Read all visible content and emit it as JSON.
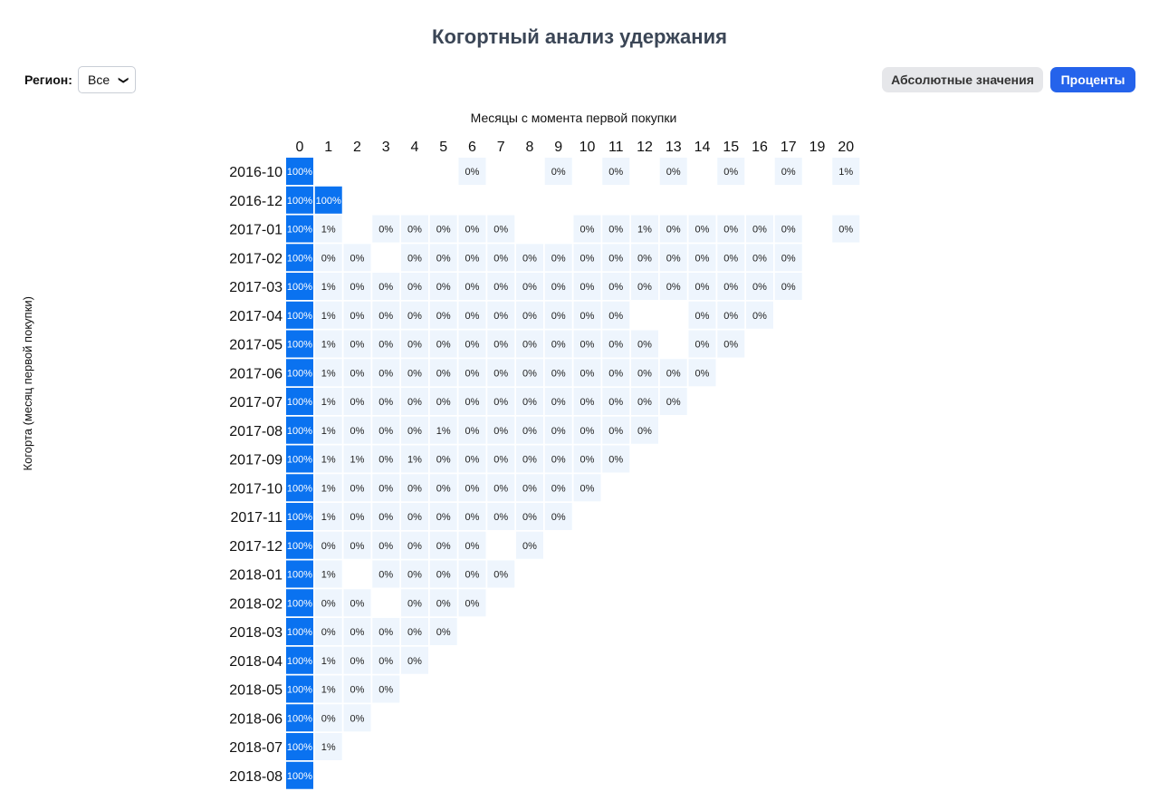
{
  "header": {
    "title": "Когортный анализ удержания"
  },
  "filters": {
    "region_label": "Регион:",
    "region_selected": "Все"
  },
  "toggles": {
    "absolute_label": "Абсолютные значения",
    "percent_label": "Проценты"
  },
  "colors": {
    "full": "#0a72f0",
    "light": "#eef5fd",
    "full_text": "#ffffff",
    "text": "#222222",
    "active_button": "#2563eb"
  },
  "chart_data": {
    "type": "heatmap",
    "xlabel": "Месяцы с момента первой покупки",
    "ylabel": "Когорта (месяц первой покупки)",
    "x": [
      "0",
      "1",
      "2",
      "3",
      "4",
      "5",
      "6",
      "7",
      "8",
      "9",
      "10",
      "11",
      "12",
      "13",
      "14",
      "15",
      "16",
      "17",
      "19",
      "20"
    ],
    "y": [
      "2016-10",
      "2016-12",
      "2017-01",
      "2017-02",
      "2017-03",
      "2017-04",
      "2017-05",
      "2017-06",
      "2017-07",
      "2017-08",
      "2017-09",
      "2017-10",
      "2017-11",
      "2017-12",
      "2018-01",
      "2018-02",
      "2018-03",
      "2018-04",
      "2018-05",
      "2018-06",
      "2018-07",
      "2018-08"
    ],
    "unit": "%",
    "values": [
      [
        100,
        null,
        null,
        null,
        null,
        null,
        0,
        null,
        null,
        0,
        null,
        0,
        null,
        0,
        null,
        0,
        null,
        0,
        null,
        1
      ],
      [
        100,
        100,
        null,
        null,
        null,
        null,
        null,
        null,
        null,
        null,
        null,
        null,
        null,
        null,
        null,
        null,
        null,
        null,
        null,
        null
      ],
      [
        100,
        1,
        null,
        0,
        0,
        0,
        0,
        0,
        null,
        null,
        0,
        0,
        1,
        0,
        0,
        0,
        0,
        0,
        null,
        0
      ],
      [
        100,
        0,
        0,
        null,
        0,
        0,
        0,
        0,
        0,
        0,
        0,
        0,
        0,
        0,
        0,
        0,
        0,
        0,
        null,
        null
      ],
      [
        100,
        1,
        0,
        0,
        0,
        0,
        0,
        0,
        0,
        0,
        0,
        0,
        0,
        0,
        0,
        0,
        0,
        0,
        null,
        null
      ],
      [
        100,
        1,
        0,
        0,
        0,
        0,
        0,
        0,
        0,
        0,
        0,
        0,
        null,
        null,
        0,
        0,
        0,
        null,
        null,
        null
      ],
      [
        100,
        1,
        0,
        0,
        0,
        0,
        0,
        0,
        0,
        0,
        0,
        0,
        0,
        null,
        0,
        0,
        null,
        null,
        null,
        null
      ],
      [
        100,
        1,
        0,
        0,
        0,
        0,
        0,
        0,
        0,
        0,
        0,
        0,
        0,
        0,
        0,
        null,
        null,
        null,
        null,
        null
      ],
      [
        100,
        1,
        0,
        0,
        0,
        0,
        0,
        0,
        0,
        0,
        0,
        0,
        0,
        0,
        null,
        null,
        null,
        null,
        null,
        null
      ],
      [
        100,
        1,
        0,
        0,
        0,
        1,
        0,
        0,
        0,
        0,
        0,
        0,
        0,
        null,
        null,
        null,
        null,
        null,
        null,
        null
      ],
      [
        100,
        1,
        1,
        0,
        1,
        0,
        0,
        0,
        0,
        0,
        0,
        0,
        null,
        null,
        null,
        null,
        null,
        null,
        null,
        null
      ],
      [
        100,
        1,
        0,
        0,
        0,
        0,
        0,
        0,
        0,
        0,
        0,
        null,
        null,
        null,
        null,
        null,
        null,
        null,
        null,
        null
      ],
      [
        100,
        1,
        0,
        0,
        0,
        0,
        0,
        0,
        0,
        0,
        null,
        null,
        null,
        null,
        null,
        null,
        null,
        null,
        null,
        null
      ],
      [
        100,
        0,
        0,
        0,
        0,
        0,
        0,
        null,
        0,
        null,
        null,
        null,
        null,
        null,
        null,
        null,
        null,
        null,
        null,
        null
      ],
      [
        100,
        1,
        null,
        0,
        0,
        0,
        0,
        0,
        null,
        null,
        null,
        null,
        null,
        null,
        null,
        null,
        null,
        null,
        null,
        null
      ],
      [
        100,
        0,
        0,
        null,
        0,
        0,
        0,
        null,
        null,
        null,
        null,
        null,
        null,
        null,
        null,
        null,
        null,
        null,
        null,
        null
      ],
      [
        100,
        0,
        0,
        0,
        0,
        0,
        null,
        null,
        null,
        null,
        null,
        null,
        null,
        null,
        null,
        null,
        null,
        null,
        null,
        null
      ],
      [
        100,
        1,
        0,
        0,
        0,
        null,
        null,
        null,
        null,
        null,
        null,
        null,
        null,
        null,
        null,
        null,
        null,
        null,
        null,
        null
      ],
      [
        100,
        1,
        0,
        0,
        null,
        null,
        null,
        null,
        null,
        null,
        null,
        null,
        null,
        null,
        null,
        null,
        null,
        null,
        null,
        null
      ],
      [
        100,
        0,
        0,
        null,
        null,
        null,
        null,
        null,
        null,
        null,
        null,
        null,
        null,
        null,
        null,
        null,
        null,
        null,
        null,
        null
      ],
      [
        100,
        1,
        null,
        null,
        null,
        null,
        null,
        null,
        null,
        null,
        null,
        null,
        null,
        null,
        null,
        null,
        null,
        null,
        null,
        null
      ],
      [
        100,
        null,
        null,
        null,
        null,
        null,
        null,
        null,
        null,
        null,
        null,
        null,
        null,
        null,
        null,
        null,
        null,
        null,
        null,
        null
      ]
    ]
  }
}
